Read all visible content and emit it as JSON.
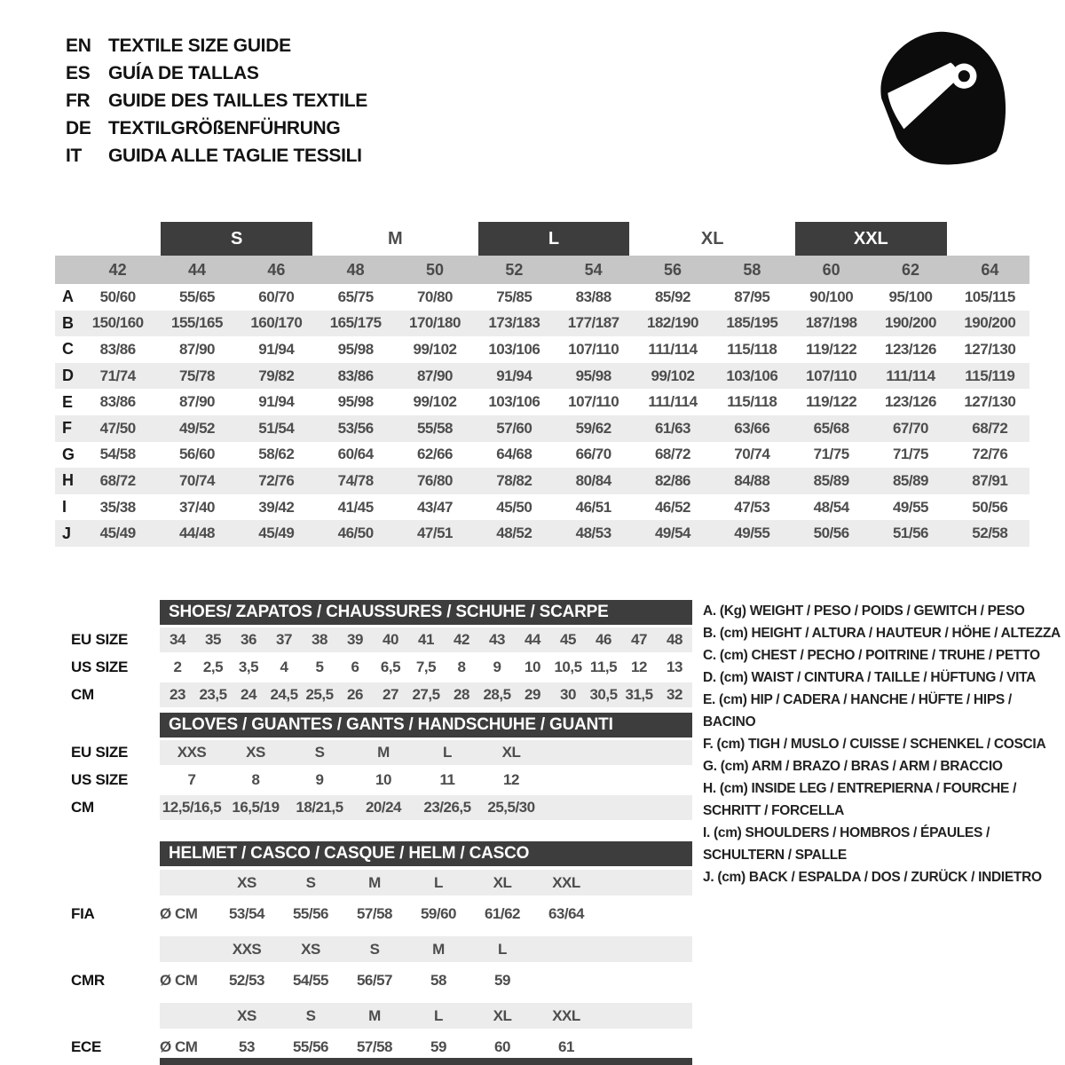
{
  "languages": [
    {
      "code": "EN",
      "label": "TEXTILE SIZE GUIDE"
    },
    {
      "code": "ES",
      "label": "GUÍA DE TALLAS"
    },
    {
      "code": "FR",
      "label": "GUIDE DES TAILLES TEXTILE"
    },
    {
      "code": "DE",
      "label": "TEXTILGRÖßENFÜHRUNG"
    },
    {
      "code": "IT",
      "label": "GUIDA ALLE TAGLIE TESSILI"
    }
  ],
  "icon": "racing-helmet",
  "textile_table": {
    "size_groups": [
      {
        "label": "S",
        "boxed": true
      },
      {
        "label": "M",
        "boxed": false
      },
      {
        "label": "L",
        "boxed": true
      },
      {
        "label": "XL",
        "boxed": false
      },
      {
        "label": "XXL",
        "boxed": true
      }
    ],
    "numeric_sizes": [
      "42",
      "44",
      "46",
      "48",
      "50",
      "52",
      "54",
      "56",
      "58",
      "60",
      "62",
      "64"
    ],
    "rows": [
      {
        "letter": "A",
        "values": [
          "50/60",
          "55/65",
          "60/70",
          "65/75",
          "70/80",
          "75/85",
          "83/88",
          "85/92",
          "87/95",
          "90/100",
          "95/100",
          "105/115"
        ]
      },
      {
        "letter": "B",
        "values": [
          "150/160",
          "155/165",
          "160/170",
          "165/175",
          "170/180",
          "173/183",
          "177/187",
          "182/190",
          "185/195",
          "187/198",
          "190/200",
          "190/200"
        ]
      },
      {
        "letter": "C",
        "values": [
          "83/86",
          "87/90",
          "91/94",
          "95/98",
          "99/102",
          "103/106",
          "107/110",
          "111/114",
          "115/118",
          "119/122",
          "123/126",
          "127/130"
        ]
      },
      {
        "letter": "D",
        "values": [
          "71/74",
          "75/78",
          "79/82",
          "83/86",
          "87/90",
          "91/94",
          "95/98",
          "99/102",
          "103/106",
          "107/110",
          "111/114",
          "115/119"
        ]
      },
      {
        "letter": "E",
        "values": [
          "83/86",
          "87/90",
          "91/94",
          "95/98",
          "99/102",
          "103/106",
          "107/110",
          "111/114",
          "115/118",
          "119/122",
          "123/126",
          "127/130"
        ]
      },
      {
        "letter": "F",
        "values": [
          "47/50",
          "49/52",
          "51/54",
          "53/56",
          "55/58",
          "57/60",
          "59/62",
          "61/63",
          "63/66",
          "65/68",
          "67/70",
          "68/72"
        ]
      },
      {
        "letter": "G",
        "values": [
          "54/58",
          "56/60",
          "58/62",
          "60/64",
          "62/66",
          "64/68",
          "66/70",
          "68/72",
          "70/74",
          "71/75",
          "71/75",
          "72/76"
        ]
      },
      {
        "letter": "H",
        "values": [
          "68/72",
          "70/74",
          "72/76",
          "74/78",
          "76/80",
          "78/82",
          "80/84",
          "82/86",
          "84/88",
          "85/89",
          "85/89",
          "87/91"
        ]
      },
      {
        "letter": "I",
        "values": [
          "35/38",
          "37/40",
          "39/42",
          "41/45",
          "43/47",
          "45/50",
          "46/51",
          "46/52",
          "47/53",
          "48/54",
          "49/55",
          "50/56"
        ]
      },
      {
        "letter": "J",
        "values": [
          "45/49",
          "44/48",
          "45/49",
          "46/50",
          "47/51",
          "48/52",
          "48/53",
          "49/54",
          "49/55",
          "50/56",
          "51/56",
          "52/58"
        ]
      }
    ]
  },
  "shoes": {
    "title": "SHOES/ ZAPATOS / CHAUSSURES / SCHUHE / SCARPE",
    "rows": [
      {
        "label": "EU SIZE",
        "values": [
          "34",
          "35",
          "36",
          "37",
          "38",
          "39",
          "40",
          "41",
          "42",
          "43",
          "44",
          "45",
          "46",
          "47",
          "48"
        ]
      },
      {
        "label": "US SIZE",
        "values": [
          "2",
          "2,5",
          "3,5",
          "4",
          "5",
          "6",
          "6,5",
          "7,5",
          "8",
          "9",
          "10",
          "10,5",
          "11,5",
          "12",
          "13"
        ]
      },
      {
        "label": "CM",
        "values": [
          "23",
          "23,5",
          "24",
          "24,5",
          "25,5",
          "26",
          "27",
          "27,5",
          "28",
          "28,5",
          "29",
          "30",
          "30,5",
          "31,5",
          "32"
        ]
      }
    ]
  },
  "gloves": {
    "title": "GLOVES / GUANTES / GANTS / HANDSCHUHE / GUANTI",
    "rows": [
      {
        "label": "EU SIZE",
        "values": [
          "XXS",
          "XS",
          "S",
          "M",
          "L",
          "XL"
        ]
      },
      {
        "label": "US SIZE",
        "values": [
          "7",
          "8",
          "9",
          "10",
          "11",
          "12"
        ]
      },
      {
        "label": "CM",
        "values": [
          "12,5/16,5",
          "16,5/19",
          "18/21,5",
          "20/24",
          "23/26,5",
          "25,5/30"
        ]
      }
    ]
  },
  "helmet": {
    "title": "HELMET / CASCO / CASQUE / HELM / CASCO",
    "standards": [
      {
        "label": "FIA",
        "unit": "Ø CM",
        "sizes": [
          "XS",
          "S",
          "M",
          "L",
          "XL",
          "XXL"
        ],
        "values": [
          "53/54",
          "55/56",
          "57/58",
          "59/60",
          "61/62",
          "63/64"
        ]
      },
      {
        "label": "CMR",
        "unit": "Ø CM",
        "sizes": [
          "XXS",
          "XS",
          "S",
          "M",
          "L",
          ""
        ],
        "values": [
          "52/53",
          "54/55",
          "56/57",
          "58",
          "59",
          ""
        ]
      },
      {
        "label": "ECE",
        "unit": "Ø CM",
        "sizes": [
          "XS",
          "S",
          "M",
          "L",
          "XL",
          "XXL"
        ],
        "values": [
          "53",
          "55/56",
          "57/58",
          "59",
          "60",
          "61"
        ]
      }
    ]
  },
  "legend": [
    "A. (Kg) WEIGHT / PESO / POIDS / GEWITCH / PESO",
    "B. (cm) HEIGHT / ALTURA / HAUTEUR / HÖHE / ALTEZZA",
    "C. (cm) CHEST / PECHO / POITRINE / TRUHE / PETTO",
    "D. (cm) WAIST / CINTURA / TAILLE / HÜFTUNG / VITA",
    "E. (cm) HIP / CADERA / HANCHE / HÜFTE / HIPS / BACINO",
    "F. (cm) TIGH / MUSLO / CUISSE / SCHENKEL / COSCIA",
    "G. (cm) ARM / BRAZO / BRAS / ARM / BRACCIO",
    "H. (cm) INSIDE LEG / ENTREPIERNA / FOURCHE / SCHRITT / FORCELLA",
    "I. (cm) SHOULDERS / HOMBROS / ÉPAULES / SCHULTERN / SPALLE",
    "J. (cm) BACK / ESPALDA / DOS / ZURÜCK / INDIETRO"
  ],
  "colors": {
    "dark_bar": "#3d3d3d",
    "size_band": "#c6c6c6",
    "row_stripe": "#ececec",
    "text": "#4d4d4d",
    "black": "#121212",
    "white": "#ffffff"
  }
}
